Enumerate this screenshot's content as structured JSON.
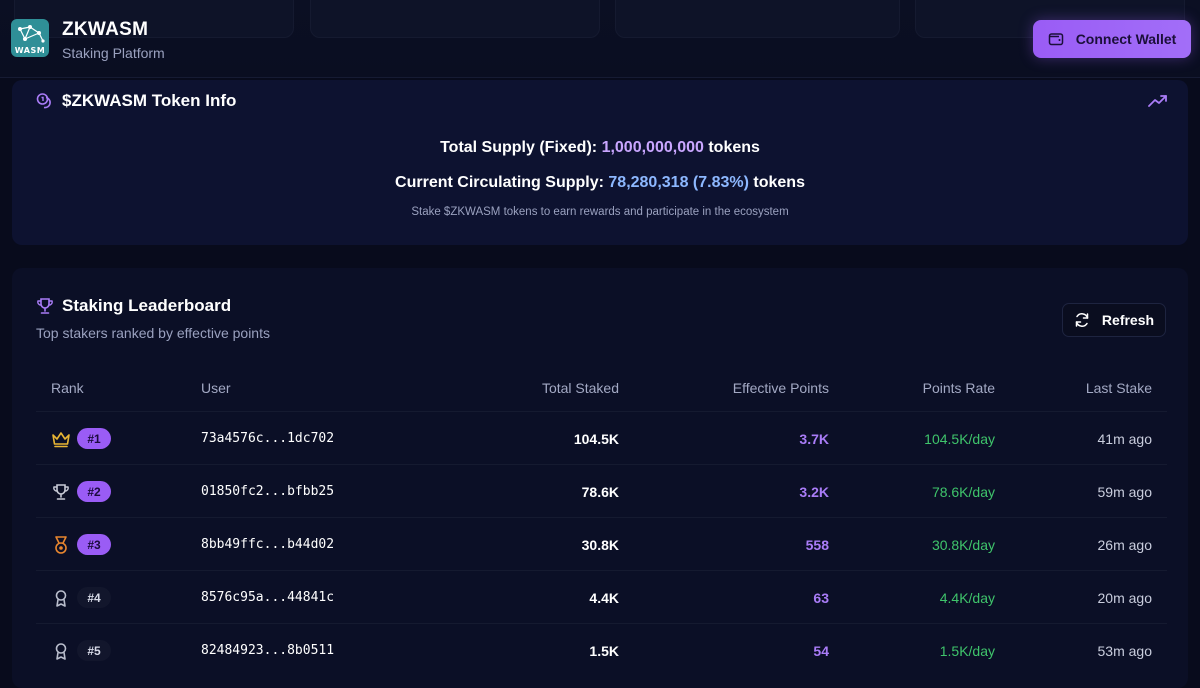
{
  "header": {
    "brand_title": "ZKWASM",
    "brand_subtitle": "Staking Platform",
    "logo_text": "WASM",
    "connect_label": "Connect Wallet",
    "logo_icon": "network-nodes-icon",
    "wallet_icon": "wallet-icon"
  },
  "token_info": {
    "title": "$ZKWASM Token Info",
    "title_icon": "coins-icon",
    "trend_icon": "trending-up-icon",
    "total_supply_label": "Total Supply (Fixed):",
    "total_supply_value": "1,000,000,000",
    "total_supply_unit": "tokens",
    "circulating_label": "Current Circulating Supply:",
    "circulating_value": "78,280,318 (7.83%)",
    "circulating_unit": "tokens",
    "note": "Stake $ZKWASM tokens to earn rewards and participate in the ecosystem"
  },
  "leaderboard": {
    "title": "Staking Leaderboard",
    "title_icon": "trophy-icon",
    "subtitle": "Top stakers ranked by effective points",
    "refresh_label": "Refresh",
    "refresh_icon": "refresh-icon",
    "columns": {
      "rank": "Rank",
      "user": "User",
      "total_staked": "Total Staked",
      "effective_points": "Effective Points",
      "points_rate": "Points Rate",
      "last_stake": "Last Stake"
    },
    "rows": [
      {
        "rank": "#1",
        "icon": "crown-icon",
        "user": "73a4576c...1dc702",
        "staked": "104.5K",
        "points": "3.7K",
        "rate": "104.5K/day",
        "last": "41m ago"
      },
      {
        "rank": "#2",
        "icon": "trophy-icon",
        "user": "01850fc2...bfbb25",
        "staked": "78.6K",
        "points": "3.2K",
        "rate": "78.6K/day",
        "last": "59m ago"
      },
      {
        "rank": "#3",
        "icon": "medal-icon",
        "user": "8bb49ffc...b44d02",
        "staked": "30.8K",
        "points": "558",
        "rate": "30.8K/day",
        "last": "26m ago"
      },
      {
        "rank": "#4",
        "icon": "award-icon",
        "user": "8576c95a...44841c",
        "staked": "4.4K",
        "points": "63",
        "rate": "4.4K/day",
        "last": "20m ago"
      },
      {
        "rank": "#5",
        "icon": "award-icon",
        "user": "82484923...8b0511",
        "staked": "1.5K",
        "points": "54",
        "rate": "1.5K/day",
        "last": "53m ago"
      }
    ]
  },
  "colors": {
    "accent": "#9a5cf5",
    "gold": "#e9b634",
    "silver": "#c7cad6",
    "bronze": "#e8862f",
    "green": "#3fc46b"
  }
}
